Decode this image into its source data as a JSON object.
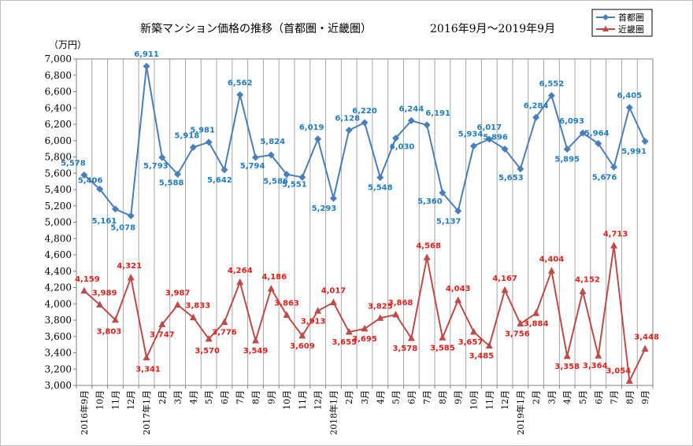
{
  "chart_data": {
    "type": "line",
    "title": "新築マンション価格の推移（首都圏・近畿圏）",
    "period": "2016年9月～2019年9月",
    "ylabel": "（万円）",
    "ylim": [
      3000,
      7000
    ],
    "ytick_step": 200,
    "grid": "vertical",
    "legend": "top-right",
    "categories": [
      "2016年9月",
      "10月",
      "11月",
      "12月",
      "2017年1月",
      "2月",
      "3月",
      "4月",
      "5月",
      "6月",
      "7月",
      "8月",
      "9月",
      "10月",
      "11月",
      "12月",
      "2018年1月",
      "2月",
      "3月",
      "4月",
      "5月",
      "6月",
      "7月",
      "8月",
      "9月",
      "10月",
      "11月",
      "12月",
      "2019年1月",
      "2月",
      "3月",
      "4月",
      "5月",
      "6月",
      "7月",
      "8月",
      "9月"
    ],
    "series": [
      {
        "name": "首都圏",
        "color": "#4a7ebb",
        "label_color": "#1f7cbf",
        "marker": "diamond",
        "values": [
          5578,
          5406,
          5161,
          5078,
          6911,
          5793,
          5588,
          5918,
          5981,
          5642,
          6562,
          5794,
          5824,
          5586,
          5551,
          6019,
          5293,
          6128,
          6220,
          5548,
          6030,
          6244,
          6191,
          5360,
          5137,
          5934,
          6017,
          5896,
          5653,
          6284,
          6552,
          5895,
          6093,
          5964,
          5676,
          6405,
          5991
        ],
        "labels": [
          "5,578",
          "5,406",
          "5,161",
          "5,078",
          "6,911",
          "5,793",
          "5,588",
          "5,918",
          "5,981",
          "5,642",
          "6,562",
          "5,794",
          "5,824",
          "5,586",
          "5,551",
          "6,019",
          "5,293",
          "6,128",
          "6,220",
          "5,548",
          "6,030",
          "6,244",
          "6,191",
          "5,360",
          "5,137",
          "5,934",
          "6,017",
          "5,896",
          "5,653",
          "6,284",
          "6,552",
          "5,895",
          "6,093",
          "5,964",
          "5,676",
          "6,405",
          "5,991"
        ]
      },
      {
        "name": "近畿圏",
        "color": "#be4b48",
        "label_color": "#e0201c",
        "marker": "triangle",
        "values": [
          4159,
          3989,
          3803,
          4321,
          3341,
          3747,
          3987,
          3833,
          3570,
          3776,
          4264,
          3549,
          4186,
          3863,
          3609,
          3913,
          4017,
          3655,
          3695,
          3825,
          3868,
          3578,
          4568,
          3585,
          4043,
          3657,
          3485,
          4167,
          3756,
          3884,
          4404,
          3358,
          4152,
          3364,
          4713,
          3054,
          3448
        ],
        "labels": [
          "4,159",
          "3,989",
          "3,803",
          "4,321",
          "3,341",
          "3,747",
          "3,987",
          "3,833",
          "3,570",
          "3,776",
          "4,264",
          "3,549",
          "4,186",
          "3,863",
          "3,609",
          "3,913",
          "4,017",
          "3,655",
          "3,695",
          "3,825",
          "3,868",
          "3,578",
          "4,568",
          "3,585",
          "4,043",
          "3,657",
          "3,485",
          "4,167",
          "3,756",
          "3,884",
          "4,404",
          "3,358",
          "4,152",
          "3,364",
          "4,713",
          "3,054",
          "3,448"
        ]
      }
    ]
  }
}
